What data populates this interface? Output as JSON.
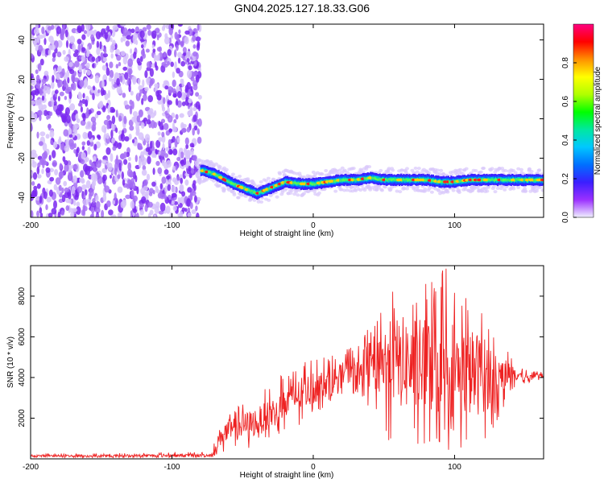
{
  "title": "GN04.2025.127.18.33.G06",
  "colors": {
    "snr_line": "#ee2222",
    "scatter_noise": "#8a3ff0",
    "colorbar": [
      "#f0f0ff",
      "#9b30ff",
      "#3a1fff",
      "#0070ff",
      "#00c8ff",
      "#00e8a0",
      "#00ff00",
      "#b0ff00",
      "#ffff00",
      "#ff9000",
      "#ff0000",
      "#ff0080"
    ]
  },
  "chart_data": [
    {
      "type": "heatmap",
      "title": "GN04.2025.127.18.33.G06",
      "xlabel": "Height of straight line (km)",
      "ylabel": "Frequency (Hz)",
      "xlim": [
        -200,
        163
      ],
      "ylim": [
        -50,
        48
      ],
      "x_ticks": [
        -200,
        -100,
        0,
        100
      ],
      "y_ticks": [
        -40,
        -20,
        0,
        20,
        40
      ],
      "noise_region": {
        "x_range": [
          -200,
          -80
        ],
        "y_range": [
          -50,
          48
        ]
      },
      "signal_ridge": {
        "x": [
          -80,
          -70,
          -60,
          -50,
          -40,
          -30,
          -20,
          -10,
          0,
          10,
          20,
          30,
          40,
          50,
          60,
          70,
          80,
          90,
          100,
          110,
          120,
          130,
          140,
          150,
          163
        ],
        "frequency": [
          -26,
          -28,
          -32,
          -35,
          -38,
          -35,
          -32,
          -33,
          -33,
          -32,
          -31,
          -31,
          -30,
          -31,
          -31,
          -31,
          -31,
          -32,
          -32,
          -31,
          -31,
          -31,
          -31,
          -31,
          -31
        ]
      },
      "colorbar": {
        "label": "Normalized spectral amplitude",
        "range": [
          0,
          1
        ],
        "ticks": [
          "0.0",
          "0.2",
          "0.4",
          "0.6",
          "0.8"
        ]
      }
    },
    {
      "type": "line",
      "xlabel": "Height of straight line (km)",
      "ylabel": "SNR (10 * v/v)",
      "xlim": [
        -200,
        163
      ],
      "ylim": [
        0,
        9500
      ],
      "x_ticks": [
        -200,
        -100,
        0,
        100
      ],
      "y_ticks": [
        2000,
        4000,
        6000,
        8000
      ],
      "series": [
        {
          "x": [
            -200,
            -180,
            -160,
            -140,
            -120,
            -100,
            -80,
            -72,
            -65,
            -55,
            -45,
            -35,
            -25,
            -15,
            -5,
            5,
            15,
            25,
            35,
            45,
            55,
            65,
            75,
            85,
            95,
            105,
            115,
            125,
            135,
            145,
            155,
            163
          ],
          "values": [
            150,
            150,
            150,
            150,
            160,
            170,
            160,
            180,
            1200,
            1500,
            1700,
            2000,
            2400,
            2900,
            3300,
            3600,
            3900,
            4300,
            4500,
            4700,
            4800,
            4700,
            4600,
            4500,
            4500,
            4300,
            4200,
            4100,
            4200,
            4100,
            4000,
            4100
          ],
          "max_envelope": [
            260,
            260,
            260,
            280,
            300,
            340,
            320,
            400,
            2200,
            2600,
            3000,
            3400,
            4000,
            4400,
            4800,
            5000,
            5200,
            5500,
            6200,
            7000,
            8200,
            8800,
            8600,
            8900,
            9500,
            8600,
            8300,
            7000,
            5600,
            4500,
            4300,
            4300
          ],
          "min_envelope": [
            60,
            60,
            60,
            60,
            60,
            60,
            60,
            60,
            300,
            400,
            500,
            800,
            1000,
            1400,
            1800,
            2400,
            3000,
            3300,
            3000,
            1500,
            800,
            300,
            200,
            300,
            400,
            300,
            600,
            1000,
            2600,
            3600,
            3800,
            3900
          ]
        }
      ]
    }
  ]
}
